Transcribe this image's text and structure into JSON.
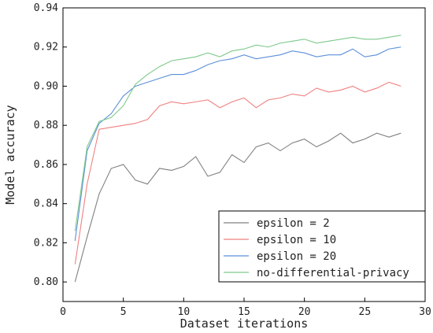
{
  "chart_data": {
    "type": "line",
    "xlabel": "Dataset iterations",
    "ylabel": "Model accuracy",
    "xlim": [
      0,
      30
    ],
    "ylim": [
      0.79,
      0.94
    ],
    "xticks": [
      "0",
      "5",
      "10",
      "15",
      "20",
      "25",
      "30"
    ],
    "yticks": [
      "0.80",
      "0.82",
      "0.84",
      "0.86",
      "0.88",
      "0.90",
      "0.92",
      "0.94"
    ],
    "grid": false,
    "legend_position": "bottom-right",
    "x": [
      1,
      2,
      3,
      4,
      5,
      6,
      7,
      8,
      9,
      10,
      11,
      12,
      13,
      14,
      15,
      16,
      17,
      18,
      19,
      20,
      21,
      22,
      23,
      24,
      25,
      26,
      27,
      28
    ],
    "series": [
      {
        "name": "epsilon = 2",
        "color": "#808080",
        "values": [
          0.8,
          0.823,
          0.845,
          0.858,
          0.86,
          0.852,
          0.85,
          0.858,
          0.857,
          0.859,
          0.864,
          0.854,
          0.856,
          0.865,
          0.861,
          0.869,
          0.871,
          0.867,
          0.871,
          0.873,
          0.869,
          0.872,
          0.876,
          0.871,
          0.873,
          0.876,
          0.874,
          0.876
        ]
      },
      {
        "name": "epsilon = 10",
        "color": "#f08080",
        "values": [
          0.809,
          0.85,
          0.878,
          0.879,
          0.88,
          0.881,
          0.883,
          0.89,
          0.892,
          0.891,
          0.892,
          0.893,
          0.889,
          0.892,
          0.894,
          0.889,
          0.893,
          0.894,
          0.896,
          0.895,
          0.899,
          0.897,
          0.898,
          0.9,
          0.897,
          0.899,
          0.902,
          0.9
        ]
      },
      {
        "name": "epsilon = 20",
        "color": "#5b8fd9",
        "values": [
          0.821,
          0.867,
          0.881,
          0.886,
          0.895,
          0.9,
          0.902,
          0.904,
          0.906,
          0.906,
          0.908,
          0.911,
          0.913,
          0.914,
          0.916,
          0.914,
          0.915,
          0.916,
          0.918,
          0.917,
          0.915,
          0.916,
          0.916,
          0.919,
          0.915,
          0.916,
          0.919,
          0.92
        ]
      },
      {
        "name": "no-differential-privacy",
        "color": "#7dc98a",
        "values": [
          0.826,
          0.869,
          0.882,
          0.884,
          0.89,
          0.901,
          0.906,
          0.91,
          0.913,
          0.914,
          0.915,
          0.917,
          0.915,
          0.918,
          0.919,
          0.921,
          0.92,
          0.922,
          0.923,
          0.924,
          0.922,
          0.923,
          0.924,
          0.925,
          0.924,
          0.924,
          0.925,
          0.926
        ]
      }
    ]
  }
}
